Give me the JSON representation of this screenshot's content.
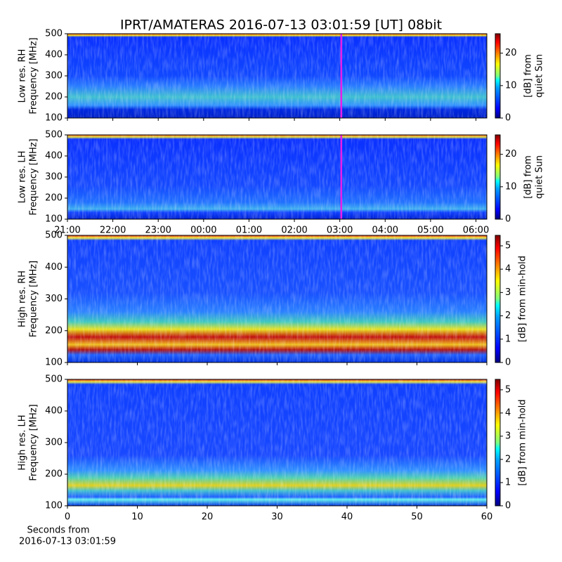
{
  "title": "IPRT/AMATERAS 2016-07-13 03:01:59 [UT]   08bit",
  "chart_data": [
    {
      "type": "spectrogram",
      "ylabel": [
        "Low res. RH",
        "Frequency [MHz]"
      ],
      "ylim": [
        100,
        500
      ],
      "yticks": [
        100,
        200,
        300,
        400,
        500
      ],
      "xlim": [
        0,
        9.24
      ],
      "xticks": [
        0,
        1,
        2,
        3,
        4,
        5,
        6,
        7,
        8,
        9
      ],
      "show_xtick_labels": false,
      "marker": {
        "x": 6.033,
        "color": "#e81ee8"
      },
      "colorbar": {
        "label": [
          "[dB] from",
          "quiet Sun"
        ],
        "lim": [
          0,
          26
        ],
        "ticks": [
          0,
          10,
          20
        ]
      }
    },
    {
      "type": "spectrogram",
      "ylabel": [
        "Low res. LH",
        "Frequency [MHz]"
      ],
      "ylim": [
        100,
        500
      ],
      "yticks": [
        100,
        200,
        300,
        400,
        500
      ],
      "xlim": [
        0,
        9.24
      ],
      "xticks": [
        {
          "value": 0,
          "label": "21:00"
        },
        {
          "value": 1,
          "label": "22:00"
        },
        {
          "value": 2,
          "label": "23:00"
        },
        {
          "value": 3,
          "label": "00:00"
        },
        {
          "value": 4,
          "label": "01:00"
        },
        {
          "value": 5,
          "label": "02:00"
        },
        {
          "value": 6,
          "label": "03:00"
        },
        {
          "value": 7,
          "label": "04:00"
        },
        {
          "value": 8,
          "label": "05:00"
        },
        {
          "value": 9,
          "label": "06:00"
        }
      ],
      "show_xtick_labels": true,
      "marker": {
        "x": 6.033,
        "color": "#e81ee8"
      },
      "colorbar": {
        "label": [
          "[dB] from",
          "quiet Sun"
        ],
        "lim": [
          0,
          26
        ],
        "ticks": [
          0,
          10,
          20
        ]
      }
    },
    {
      "type": "spectrogram",
      "ylabel": [
        "High res. RH",
        "Frequency [MHz]"
      ],
      "ylim": [
        100,
        500
      ],
      "yticks": [
        100,
        200,
        300,
        400,
        500
      ],
      "xlim": [
        0,
        60
      ],
      "xticks": [
        0,
        10,
        20,
        30,
        40,
        50,
        60
      ],
      "show_xtick_labels": false,
      "colorbar": {
        "label": [
          "[dB] from min-hold"
        ],
        "lim": [
          0,
          5.45
        ],
        "ticks": [
          0,
          1,
          2,
          3,
          4,
          5
        ]
      }
    },
    {
      "type": "spectrogram",
      "ylabel": [
        "High res. LH",
        "Frequency [MHz]"
      ],
      "ylim": [
        100,
        500
      ],
      "yticks": [
        100,
        200,
        300,
        400,
        500
      ],
      "xlim": [
        0,
        60
      ],
      "xticks": [
        0,
        10,
        20,
        30,
        40,
        50,
        60
      ],
      "show_xtick_labels": true,
      "xlabel": [
        "Seconds from",
        "2016-07-13 03:01:59"
      ],
      "colorbar": {
        "label": [
          "[dB] from min-hold"
        ],
        "lim": [
          0,
          5.45
        ],
        "ticks": [
          0,
          1,
          2,
          3,
          4,
          5
        ]
      }
    }
  ]
}
